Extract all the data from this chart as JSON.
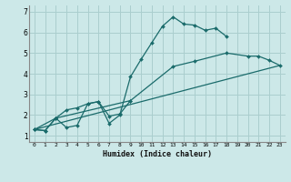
{
  "xlabel": "Humidex (Indice chaleur)",
  "background_color": "#cce8e8",
  "grid_color": "#aacece",
  "line_color": "#1a6b6b",
  "xlim": [
    -0.5,
    23.5
  ],
  "ylim": [
    0.7,
    7.3
  ],
  "yticks": [
    1,
    2,
    3,
    4,
    5,
    6,
    7
  ],
  "xticks": [
    0,
    1,
    2,
    3,
    4,
    5,
    6,
    7,
    8,
    9,
    10,
    11,
    12,
    13,
    14,
    15,
    16,
    17,
    18,
    19,
    20,
    21,
    22,
    23
  ],
  "line1_x": [
    0,
    1,
    2,
    3,
    4,
    5,
    6,
    7,
    8,
    9,
    10,
    11,
    12,
    13,
    14,
    15,
    16,
    17,
    18
  ],
  "line1_y": [
    1.3,
    1.25,
    1.85,
    1.4,
    1.5,
    2.55,
    2.65,
    1.6,
    2.0,
    3.85,
    4.7,
    5.5,
    6.3,
    6.75,
    6.4,
    6.35,
    6.1,
    6.2,
    5.8
  ],
  "line2_x": [
    0,
    1,
    2,
    3,
    4,
    5,
    6,
    7,
    8,
    9
  ],
  "line2_y": [
    1.3,
    1.25,
    1.85,
    2.25,
    2.35,
    2.55,
    2.65,
    1.95,
    2.05,
    2.7
  ],
  "line3_x": [
    0,
    2,
    9,
    13,
    15,
    18,
    20,
    21,
    22,
    23
  ],
  "line3_y": [
    1.3,
    1.85,
    2.7,
    4.35,
    4.6,
    5.0,
    4.85,
    4.85,
    4.65,
    4.4
  ],
  "line4_x": [
    0,
    23
  ],
  "line4_y": [
    1.3,
    4.4
  ]
}
